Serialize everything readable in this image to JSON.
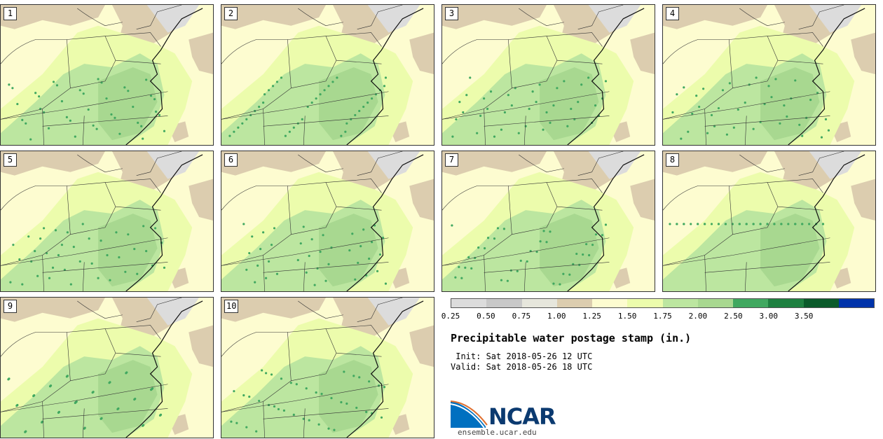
{
  "panels": [
    {
      "label": "1"
    },
    {
      "label": "2"
    },
    {
      "label": "3"
    },
    {
      "label": "4"
    },
    {
      "label": "5"
    },
    {
      "label": "6"
    },
    {
      "label": "7"
    },
    {
      "label": "8"
    },
    {
      "label": "9"
    },
    {
      "label": "10"
    }
  ],
  "colorbar": {
    "colors": [
      "#dcdcdc",
      "#c8c8c8",
      "#e6e6dc",
      "#dccdaf",
      "#fdfcd0",
      "#ecfcac",
      "#bce6a0",
      "#a8d890",
      "#40a860",
      "#1e8040",
      "#0a5a2a",
      "#0033aa"
    ],
    "ticks": [
      "0.25",
      "0.50",
      "0.75",
      "1.00",
      "1.25",
      "1.50",
      "1.75",
      "2.00",
      "2.50",
      "3.00",
      "3.50"
    ]
  },
  "title": "Precipitable water postage stamp (in.)",
  "init": " Init: Sat 2018-05-26 12 UTC",
  "valid": "Valid: Sat 2018-05-26 18 UTC",
  "logo": {
    "text": "NCAR",
    "url": "ensemble.ucar.edu"
  }
}
